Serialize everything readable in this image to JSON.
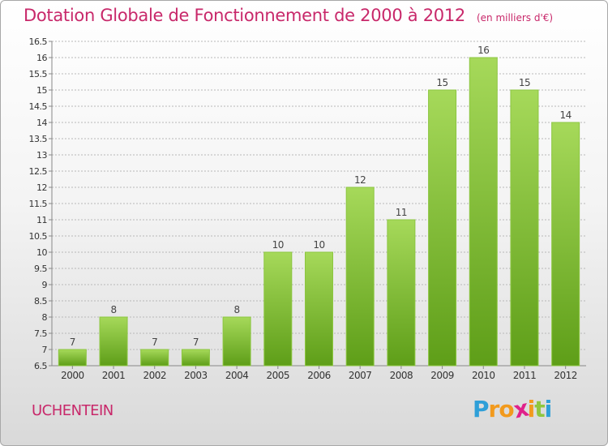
{
  "header": {
    "title": "Dotation Globale de Fonctionnement de 2000 à 2012",
    "unit": "(en milliers d'€)"
  },
  "footer": {
    "commune": "UCHENTEIN",
    "logo_letters": [
      "P",
      "r",
      "o",
      "x",
      "i",
      "t",
      "i"
    ],
    "logo_colors": [
      "#2e9fd8",
      "#f29a1d",
      "#f29a1d",
      "#e0218a",
      "#f29a1d",
      "#8fc63f",
      "#2e9fd8"
    ]
  },
  "colors": {
    "title": "#c8286a",
    "bar_light": "#a6d95a",
    "bar_dark": "#5e9e18",
    "grid": "#b8b8b8"
  },
  "chart_data": {
    "type": "bar",
    "title": "Dotation Globale de Fonctionnement de 2000 à 2012",
    "unit": "(en milliers d'€)",
    "categories": [
      "2000",
      "2001",
      "2002",
      "2003",
      "2004",
      "2005",
      "2006",
      "2007",
      "2008",
      "2009",
      "2010",
      "2011",
      "2012"
    ],
    "values": [
      7,
      8,
      7,
      7,
      8,
      10,
      10,
      12,
      11,
      15,
      16,
      15,
      14
    ],
    "data_labels": [
      "7",
      "8",
      "7",
      "7",
      "8",
      "10",
      "10",
      "12",
      "11",
      "15",
      "16",
      "15",
      "14"
    ],
    "ylim": [
      6.5,
      16.5
    ],
    "yticks": [
      "6.5",
      "7",
      "7.5",
      "8",
      "8.5",
      "9",
      "9.5",
      "10",
      "10.5",
      "11",
      "11.5",
      "12",
      "12.5",
      "13",
      "13.5",
      "14",
      "14.5",
      "15",
      "15.5",
      "16",
      "16.5"
    ],
    "grid": true
  }
}
